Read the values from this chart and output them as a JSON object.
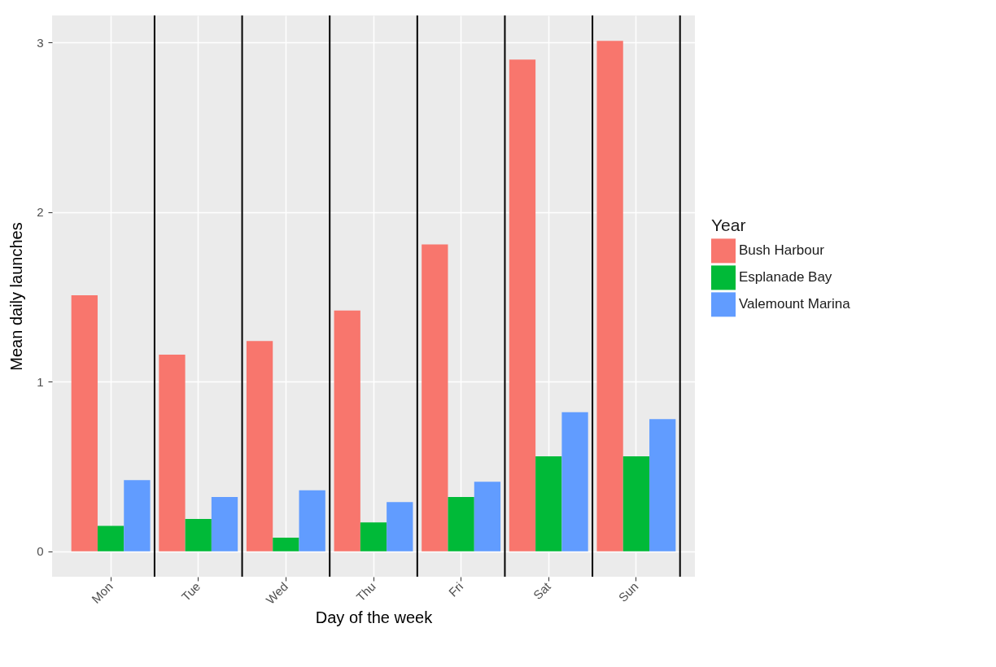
{
  "chart_data": {
    "type": "bar",
    "xlabel": "Day of the week",
    "ylabel": "Mean daily launches",
    "legend_title": "Year",
    "categories": [
      "Mon",
      "Tue",
      "Wed",
      "Thu",
      "Fri",
      "Sat",
      "Sun"
    ],
    "series": [
      {
        "name": "Bush Harbour",
        "color": "#f8766d",
        "values": [
          1.51,
          1.16,
          1.24,
          1.42,
          1.81,
          2.9,
          3.01
        ]
      },
      {
        "name": "Esplanade Bay",
        "color": "#00ba38",
        "values": [
          0.15,
          0.19,
          0.08,
          0.17,
          0.32,
          0.56,
          0.56
        ]
      },
      {
        "name": "Valemount Marina",
        "color": "#619cff",
        "values": [
          0.42,
          0.32,
          0.36,
          0.29,
          0.41,
          0.82,
          0.78
        ]
      }
    ],
    "ylim": [
      -0.15,
      3.16
    ],
    "yticks": [
      0,
      1,
      2,
      3
    ],
    "grid": true,
    "legend": "right"
  }
}
